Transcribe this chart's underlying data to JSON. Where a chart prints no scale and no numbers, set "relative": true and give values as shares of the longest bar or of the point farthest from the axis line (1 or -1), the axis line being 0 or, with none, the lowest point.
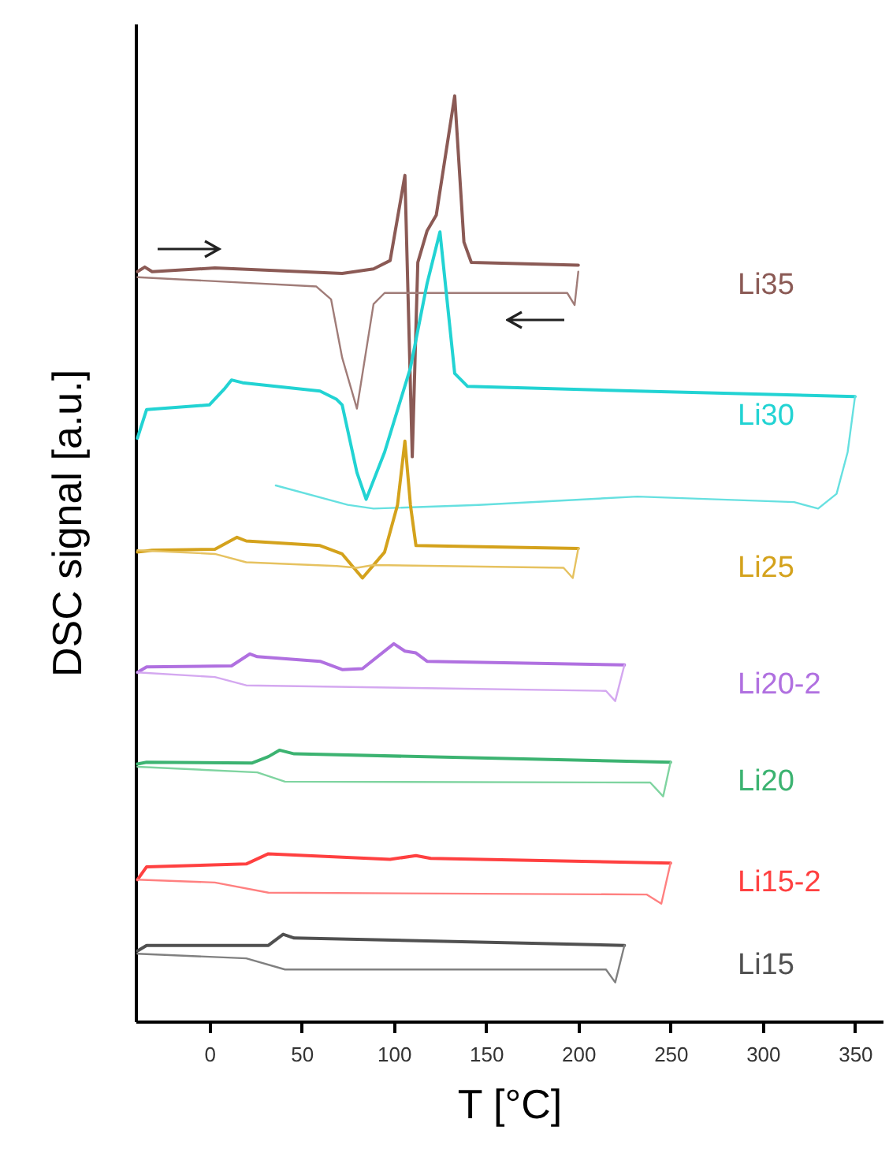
{
  "chart_data": {
    "type": "line",
    "relative": true,
    "xlabel": "T [°C]",
    "ylabel": "DSC signal [a.u.]",
    "xlim": [
      -40,
      365
    ],
    "xticks": [
      0,
      50,
      100,
      150,
      200,
      250,
      300,
      350
    ],
    "series": [
      {
        "name": "Li35",
        "color": "#8b5a55",
        "x": [
          -39,
          -35,
          -31,
          3,
          72,
          89,
          98,
          106,
          110,
          113,
          118,
          123,
          133,
          138,
          142,
          200
        ],
        "values": [
          0.81,
          0.815,
          0.81,
          0.814,
          0.808,
          0.813,
          0.822,
          0.914,
          0.61,
          0.82,
          0.854,
          0.871,
          1,
          0.842,
          0.82,
          0.817
        ]
      },
      {
        "color": "#a07c78",
        "x": [
          200,
          198,
          194,
          95,
          89,
          80,
          72,
          66,
          58,
          -39
        ],
        "values": [
          0.81,
          0.774,
          0.787,
          0.787,
          0.775,
          0.662,
          0.717,
          0.78,
          0.794,
          0.804
        ]
      },
      {
        "name": "Li30",
        "color": "#22d3d3",
        "x": [
          -39,
          -34,
          0,
          8,
          12,
          18,
          60,
          69,
          72,
          80,
          85,
          95,
          109,
          118,
          125,
          133,
          140,
          232,
          350
        ],
        "values": [
          0.63,
          0.661,
          0.666,
          0.683,
          0.693,
          0.69,
          0.681,
          0.672,
          0.666,
          0.593,
          0.564,
          0.615,
          0.706,
          0.797,
          0.853,
          0.7,
          0.686,
          0.681,
          0.675
        ]
      },
      {
        "color": "#66e0e0",
        "x": [
          350,
          346,
          340,
          330,
          317,
          232,
          146,
          89,
          75,
          36
        ],
        "values": [
          0.675,
          0.615,
          0.57,
          0.554,
          0.561,
          0.567,
          0.558,
          0.554,
          0.558,
          0.579
        ]
      },
      {
        "name": "Li25",
        "color": "#d4a21c",
        "x": [
          -39,
          -31,
          3,
          15,
          20,
          60,
          72,
          83,
          95,
          102,
          106,
          109,
          112,
          200
        ],
        "values": [
          0.507,
          0.509,
          0.51,
          0.523,
          0.519,
          0.514,
          0.505,
          0.479,
          0.507,
          0.558,
          0.627,
          0.558,
          0.514,
          0.511
        ]
      },
      {
        "color": "#e6c260",
        "x": [
          200,
          197,
          192,
          89,
          80,
          69,
          20,
          3,
          -39
        ],
        "values": [
          0.511,
          0.479,
          0.49,
          0.493,
          0.49,
          0.492,
          0.496,
          0.505,
          0.509
        ]
      },
      {
        "name": "Li20-2",
        "color": "#b070e0",
        "x": [
          -39,
          -34,
          12,
          22,
          26,
          60,
          72,
          83,
          100,
          106,
          112,
          118,
          225
        ],
        "values": [
          0.377,
          0.383,
          0.384,
          0.397,
          0.394,
          0.389,
          0.38,
          0.381,
          0.408,
          0.4,
          0.398,
          0.389,
          0.385
        ]
      },
      {
        "color": "#d4a8f0",
        "x": [
          225,
          220,
          215,
          118,
          20,
          3,
          -39
        ],
        "values": [
          0.385,
          0.346,
          0.357,
          0.36,
          0.363,
          0.372,
          0.377
        ]
      },
      {
        "name": "Li20",
        "color": "#3cb371",
        "x": [
          -39,
          -34,
          23,
          32,
          38,
          46,
          250
        ],
        "values": [
          0.278,
          0.28,
          0.279,
          0.286,
          0.293,
          0.289,
          0.28
        ]
      },
      {
        "color": "#7fd4a0",
        "x": [
          250,
          246,
          239,
          41,
          26,
          -39
        ],
        "values": [
          0.28,
          0.243,
          0.258,
          0.259,
          0.269,
          0.275
        ]
      },
      {
        "name": "Li15-2",
        "color": "#ff4040",
        "x": [
          -39,
          -34,
          20,
          32,
          98,
          112,
          120,
          250
        ],
        "values": [
          0.153,
          0.167,
          0.17,
          0.181,
          0.175,
          0.179,
          0.176,
          0.171
        ]
      },
      {
        "color": "#ff8080",
        "x": [
          250,
          245,
          237,
          32,
          3,
          -39
        ],
        "values": [
          0.171,
          0.127,
          0.137,
          0.139,
          0.15,
          0.153
        ]
      },
      {
        "name": "Li15",
        "color": "#505050",
        "x": [
          -39,
          -34,
          32,
          40,
          46,
          225
        ],
        "values": [
          0.076,
          0.082,
          0.082,
          0.094,
          0.09,
          0.082
        ]
      },
      {
        "color": "#808080",
        "x": [
          225,
          220,
          215,
          41,
          20,
          -39
        ],
        "values": [
          0.082,
          0.042,
          0.056,
          0.056,
          0.068,
          0.073
        ]
      }
    ]
  }
}
